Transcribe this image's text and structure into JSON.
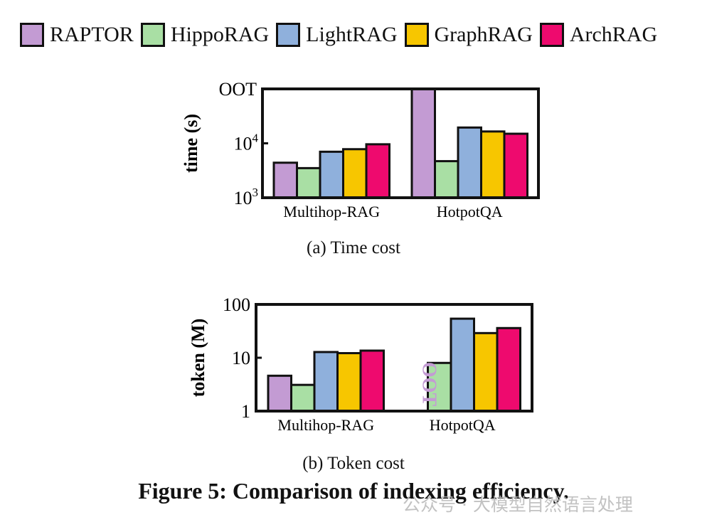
{
  "legend": {
    "items": [
      {
        "name": "RAPTOR",
        "color": "#c39bd3"
      },
      {
        "name": "HippoRAG",
        "color": "#a9dfa4"
      },
      {
        "name": "LightRAG",
        "color": "#8fb0dc"
      },
      {
        "name": "GraphRAG",
        "color": "#f7c600"
      },
      {
        "name": "ArchRAG",
        "color": "#ee0a6e"
      }
    ]
  },
  "chart_data": [
    {
      "type": "bar",
      "title": "",
      "caption": "(a)  Time cost",
      "ylabel": "time (s)",
      "yscale": "log",
      "ylim": [
        1000,
        100000
      ],
      "yticks": [
        {
          "value": 1000,
          "label": "10",
          "sup": "3"
        },
        {
          "value": 10000,
          "label": "10",
          "sup": "4"
        },
        {
          "value": 100000,
          "label": "OOT",
          "sup": ""
        }
      ],
      "categories": [
        "Multihop-RAG",
        "HotpotQA"
      ],
      "series": [
        {
          "name": "RAPTOR",
          "values": [
            4400,
            100000
          ]
        },
        {
          "name": "HippoRAG",
          "values": [
            3500,
            4700
          ]
        },
        {
          "name": "LightRAG",
          "values": [
            7000,
            19500
          ]
        },
        {
          "name": "GraphRAG",
          "values": [
            7800,
            16500
          ]
        },
        {
          "name": "ArchRAG",
          "values": [
            9600,
            15000
          ]
        }
      ],
      "annotations": []
    },
    {
      "type": "bar",
      "title": "",
      "caption": "(b)  Token cost",
      "ylabel": "token (M)",
      "yscale": "log",
      "ylim": [
        1,
        100
      ],
      "yticks": [
        {
          "value": 1,
          "label": "1",
          "sup": ""
        },
        {
          "value": 10,
          "label": "10",
          "sup": ""
        },
        {
          "value": 100,
          "label": "100",
          "sup": ""
        }
      ],
      "categories": [
        "Multihop-RAG",
        "HotpotQA"
      ],
      "series": [
        {
          "name": "RAPTOR",
          "values": [
            4.6,
            null
          ]
        },
        {
          "name": "HippoRAG",
          "values": [
            3.1,
            8.0
          ]
        },
        {
          "name": "LightRAG",
          "values": [
            12.8,
            54
          ]
        },
        {
          "name": "GraphRAG",
          "values": [
            12.2,
            29
          ]
        },
        {
          "name": "ArchRAG",
          "values": [
            13.6,
            36
          ]
        }
      ],
      "annotations": [
        {
          "text": "OOT",
          "series": "RAPTOR",
          "category": "HotpotQA",
          "color": "#c39bd3"
        }
      ]
    }
  ],
  "figure_caption": "Figure 5: Comparison of indexing efficiency.",
  "watermark": "公众号 · 大模型自然语言处理"
}
